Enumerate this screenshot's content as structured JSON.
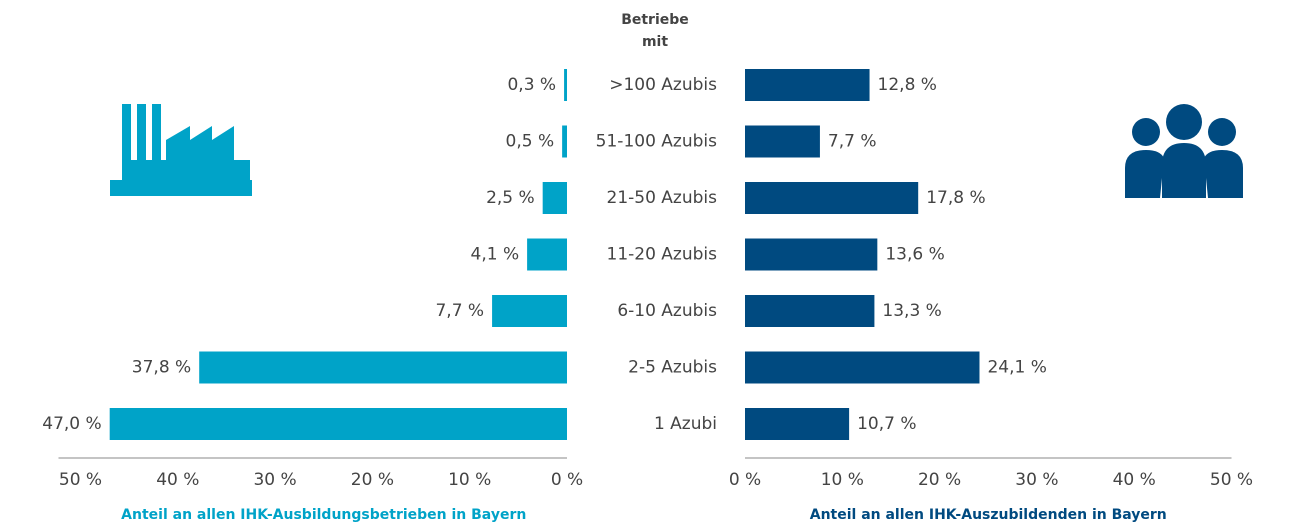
{
  "chart_data": [
    {
      "type": "bar",
      "orientation": "horizontal",
      "direction": "left",
      "category_title": "Betriebe mit",
      "categories": [
        ">100 Azubis",
        "51-100 Azubis",
        "21-50 Azubis",
        "11-20 Azubis",
        "6-10 Azubis",
        "2-5 Azubis",
        "1 Azubi"
      ],
      "values": [
        0.3,
        0.5,
        2.5,
        4.1,
        7.7,
        37.8,
        47.0
      ],
      "value_labels": [
        "0,3 %",
        "0,5 %",
        "2,5 %",
        "4,1 %",
        "7,7 %",
        "37,8 %",
        "47,0 %"
      ],
      "color": "#00a3c8",
      "xlabel": "Anteil an allen IHK-Ausbildungsbetrieben in Bayern",
      "xlim": [
        0,
        50
      ],
      "xticks": [
        {
          "value": 50,
          "label": "50 %"
        },
        {
          "value": 40,
          "label": "40 %"
        },
        {
          "value": 30,
          "label": "30 %"
        },
        {
          "value": 20,
          "label": "20 %"
        },
        {
          "value": 10,
          "label": "10 %"
        },
        {
          "value": 0,
          "label": "0 %"
        }
      ]
    },
    {
      "type": "bar",
      "orientation": "horizontal",
      "direction": "right",
      "values": [
        12.8,
        7.7,
        17.8,
        13.6,
        13.3,
        24.1,
        10.7
      ],
      "value_labels": [
        "12,8 %",
        "7,7 %",
        "17,8 %",
        "13,6 %",
        "13,3 %",
        "24,1 %",
        "10,7 %"
      ],
      "color": "#004a80",
      "xlabel": "Anteil an allen IHK-Auszubildenden in Bayern",
      "xlim": [
        0,
        50
      ],
      "xticks": [
        {
          "value": 0,
          "label": "0 %"
        },
        {
          "value": 10,
          "label": "10 %"
        },
        {
          "value": 20,
          "label": "20 %"
        },
        {
          "value": 30,
          "label": "30 %"
        },
        {
          "value": 40,
          "label": "40 %"
        },
        {
          "value": 50,
          "label": "50 %"
        }
      ]
    }
  ]
}
